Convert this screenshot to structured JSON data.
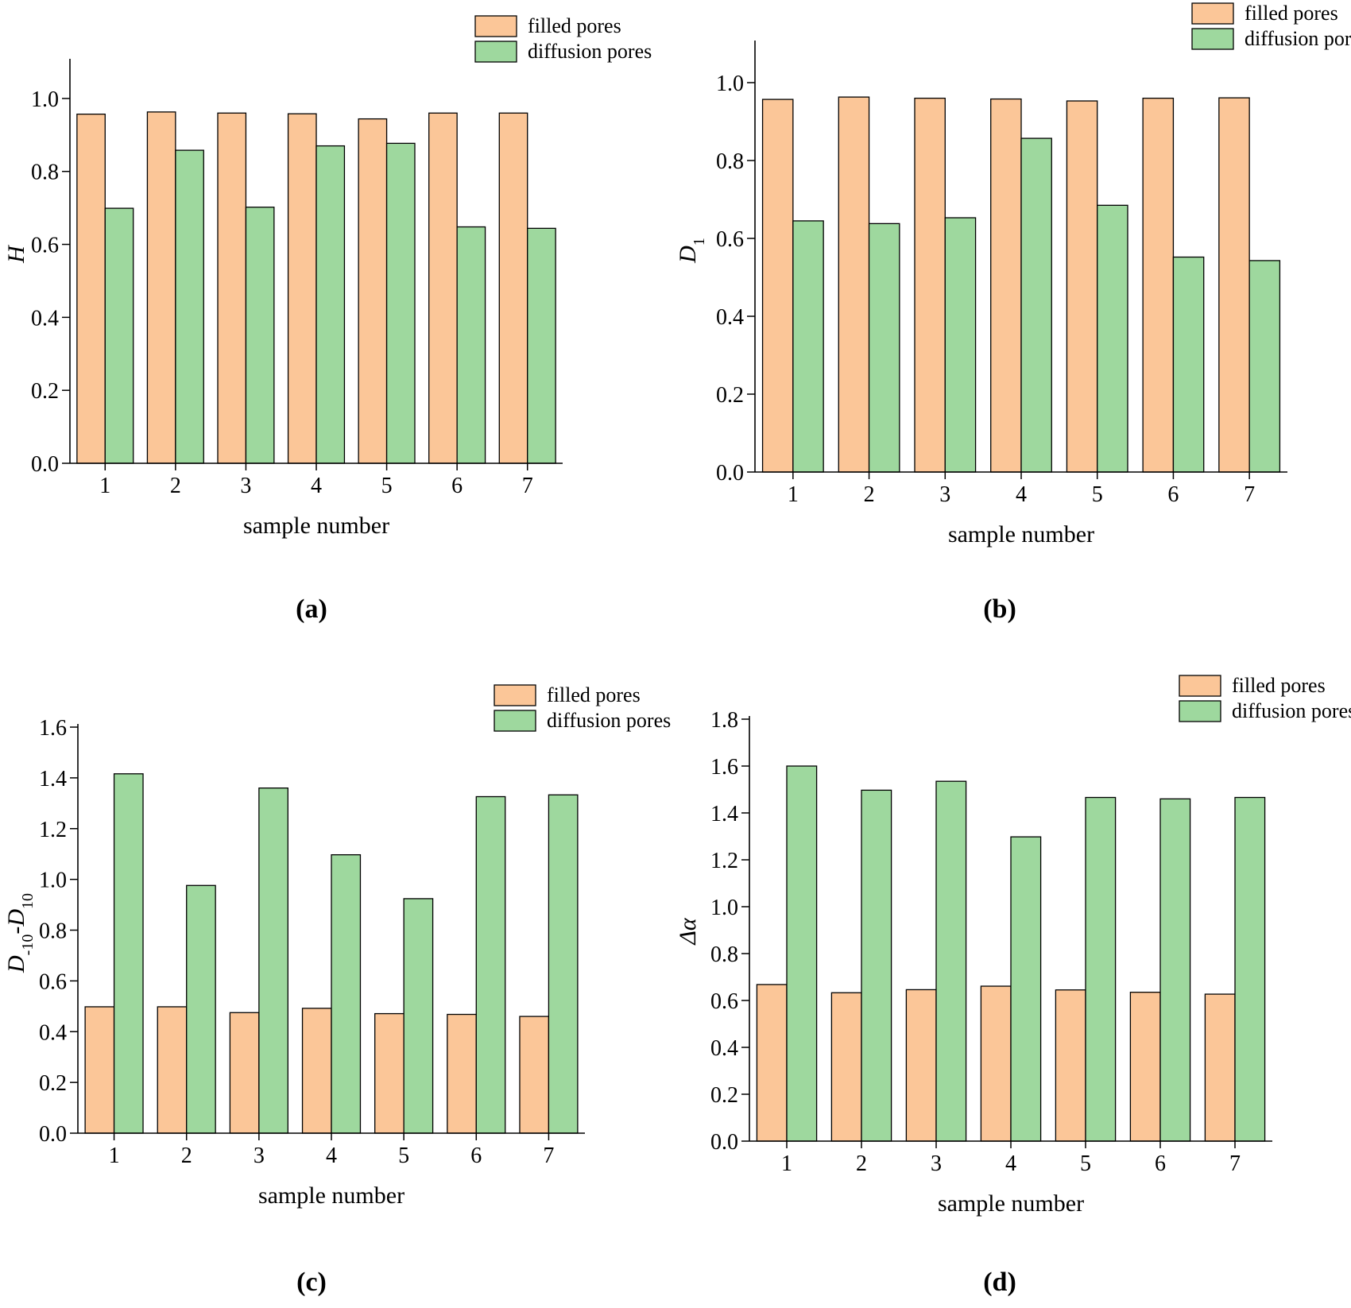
{
  "colors": {
    "filled": "#fbc698",
    "diffusion": "#9ed89e",
    "stroke": "#000000"
  },
  "captions": [
    "(a)",
    "(b)",
    "(c)",
    "(d)"
  ],
  "legend_labels": [
    "filled pores",
    "diffusion pores"
  ],
  "chart_data": [
    {
      "type": "bar",
      "ylabel": {
        "main": "H",
        "sub": ""
      },
      "xlabel": "sample number",
      "categories": [
        "1",
        "2",
        "3",
        "4",
        "5",
        "6",
        "7"
      ],
      "ylim": [
        0,
        1.1
      ],
      "yticks": [
        "0.0",
        "0.2",
        "0.4",
        "0.6",
        "0.8",
        "1.0"
      ],
      "legend": "top-right",
      "series": [
        {
          "name": "filled pores",
          "values": [
            0.957,
            0.963,
            0.96,
            0.958,
            0.944,
            0.96,
            0.96
          ]
        },
        {
          "name": "diffusion pores",
          "values": [
            0.699,
            0.858,
            0.702,
            0.87,
            0.877,
            0.648,
            0.644
          ]
        }
      ]
    },
    {
      "type": "bar",
      "ylabel": {
        "main": "D",
        "sub": "1"
      },
      "xlabel": "sample number",
      "categories": [
        "1",
        "2",
        "3",
        "4",
        "5",
        "6",
        "7"
      ],
      "ylim": [
        0,
        1.1
      ],
      "yticks": [
        "0.0",
        "0.2",
        "0.4",
        "0.6",
        "0.8",
        "1.0"
      ],
      "legend": "top-right",
      "series": [
        {
          "name": "filled pores",
          "values": [
            0.957,
            0.963,
            0.96,
            0.958,
            0.953,
            0.96,
            0.961
          ]
        },
        {
          "name": "diffusion pores",
          "values": [
            0.645,
            0.638,
            0.653,
            0.857,
            0.685,
            0.552,
            0.543
          ]
        }
      ]
    },
    {
      "type": "bar",
      "ylabel": {
        "main": "D",
        "sub": "-10",
        "main2": "-D",
        "sub2": "10"
      },
      "xlabel": "sample number",
      "categories": [
        "1",
        "2",
        "3",
        "4",
        "5",
        "6",
        "7"
      ],
      "ylim": [
        0,
        1.6
      ],
      "yticks": [
        "0.0",
        "0.2",
        "0.4",
        "0.6",
        "0.8",
        "1.0",
        "1.2",
        "1.4",
        "1.6"
      ],
      "legend": "top-right",
      "series": [
        {
          "name": "filled pores",
          "values": [
            0.498,
            0.498,
            0.475,
            0.492,
            0.471,
            0.468,
            0.46
          ]
        },
        {
          "name": "diffusion pores",
          "values": [
            1.416,
            0.976,
            1.36,
            1.097,
            0.924,
            1.326,
            1.333
          ]
        }
      ]
    },
    {
      "type": "bar",
      "ylabel": {
        "main": "Δα",
        "sub": ""
      },
      "xlabel": "sample number",
      "categories": [
        "1",
        "2",
        "3",
        "4",
        "5",
        "6",
        "7"
      ],
      "ylim": [
        0,
        1.8
      ],
      "yticks": [
        "0.0",
        "0.2",
        "0.4",
        "0.6",
        "0.8",
        "1.0",
        "1.2",
        "1.4",
        "1.6",
        "1.8"
      ],
      "legend": "top-right",
      "series": [
        {
          "name": "filled pores",
          "values": [
            0.668,
            0.633,
            0.646,
            0.661,
            0.645,
            0.635,
            0.627
          ]
        },
        {
          "name": "diffusion pores",
          "values": [
            1.6,
            1.497,
            1.535,
            1.298,
            1.466,
            1.46,
            1.466
          ]
        }
      ]
    }
  ]
}
